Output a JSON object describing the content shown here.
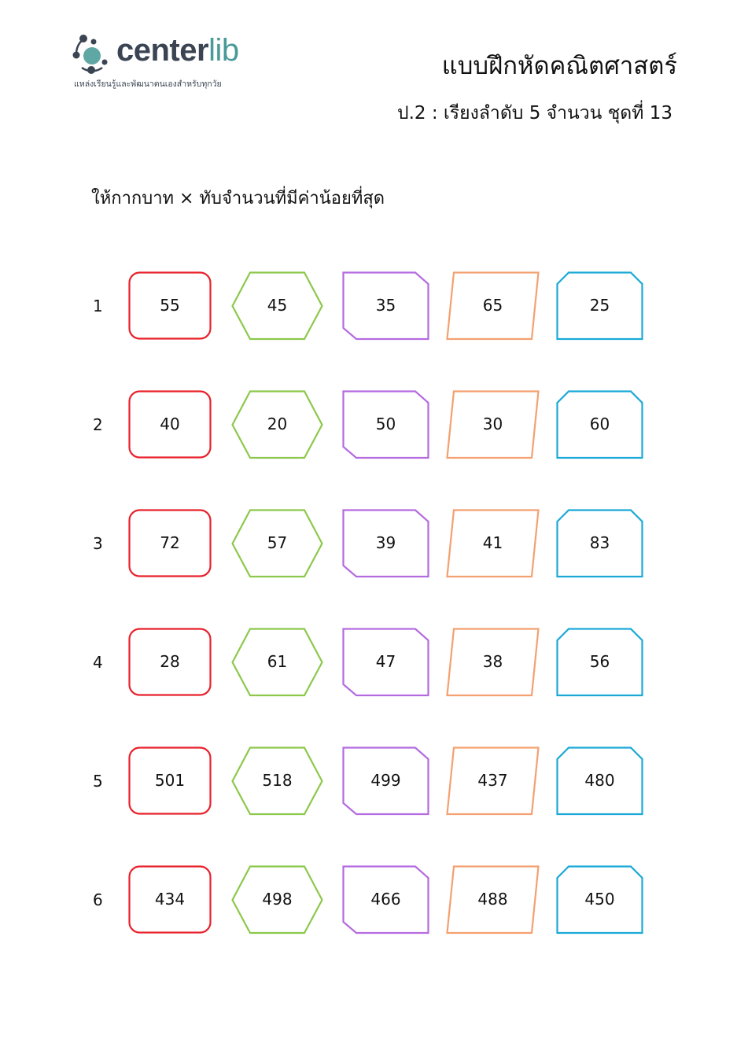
{
  "logo": {
    "name_main": "center",
    "name_accent": "lib",
    "tagline": "แหล่งเรียนรู้และพัฒนาตนเองสำหรับทุกวัย"
  },
  "header": {
    "title": "แบบฝึกหัดคณิตศาสตร์",
    "subtitle": "ป.2 :  เรียงลำดับ 5 จำนวน ชุดที่ 13"
  },
  "instruction": "ให้กากบาท × ทับจำนวนที่มีค่าน้อยที่สุด",
  "shape_colors": [
    "#e8212b",
    "#8cc84b",
    "#b56be0",
    "#f4a070",
    "#1aa9d6"
  ],
  "shape_names": [
    "rounded-rectangle",
    "hexagon",
    "cut-corner-rectangle",
    "parallelogram",
    "top-cut-rectangle"
  ],
  "rows": [
    {
      "label": "1",
      "values": [
        "55",
        "45",
        "35",
        "65",
        "25"
      ]
    },
    {
      "label": "2",
      "values": [
        "40",
        "20",
        "50",
        "30",
        "60"
      ]
    },
    {
      "label": "3",
      "values": [
        "72",
        "57",
        "39",
        "41",
        "83"
      ]
    },
    {
      "label": "4",
      "values": [
        "28",
        "61",
        "47",
        "38",
        "56"
      ]
    },
    {
      "label": "5",
      "values": [
        "501",
        "518",
        "499",
        "437",
        "480"
      ]
    },
    {
      "label": "6",
      "values": [
        "434",
        "498",
        "466",
        "488",
        "450"
      ]
    }
  ]
}
